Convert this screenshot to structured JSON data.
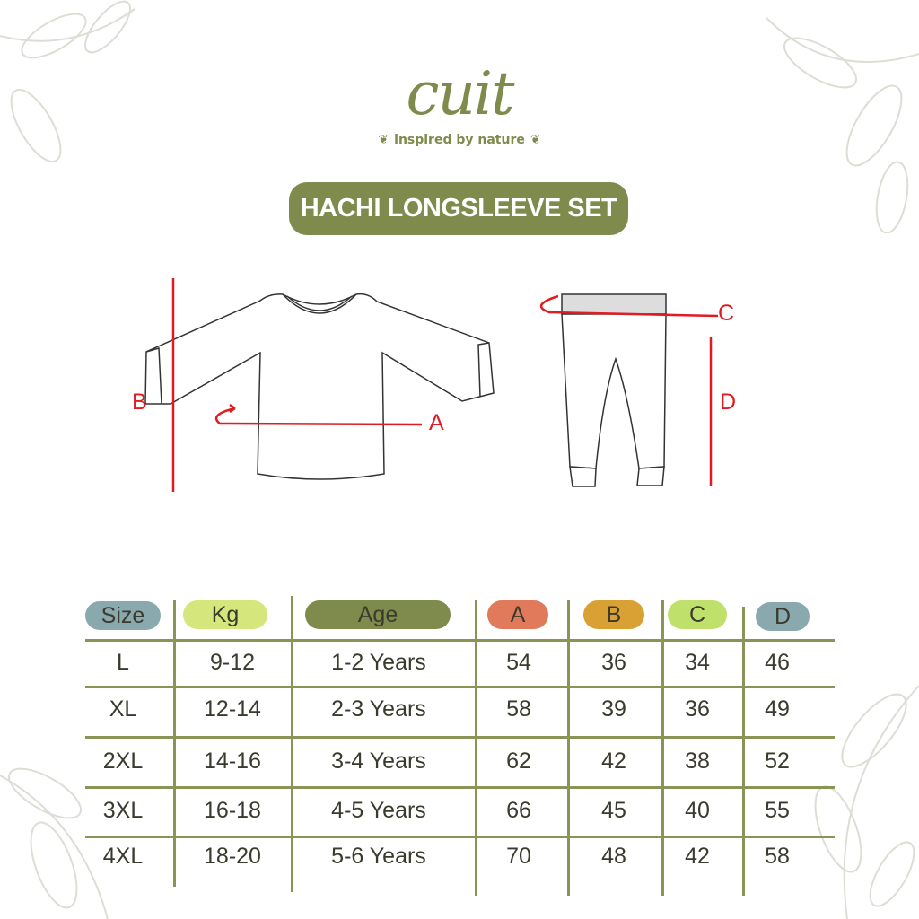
{
  "brand": {
    "name": "cuit",
    "tagline": "inspired by nature"
  },
  "title": "HACHI LONGSLEEVE SET",
  "measurement_labels": {
    "a": "A",
    "b": "B",
    "c": "C",
    "d": "D"
  },
  "colors": {
    "brand_green": "#7e8b4c",
    "measure_red": "#e01b22",
    "size": "#8aa9ae",
    "kg": "#d4e67c",
    "age": "#7e8b4c",
    "a": "#e07a5a",
    "b": "#d9a033",
    "c": "#bfe06a",
    "d": "#8aa9ae"
  },
  "table": {
    "headers": [
      "Size",
      "Kg",
      "Age",
      "A",
      "B",
      "C",
      "D"
    ],
    "rows": [
      [
        "L",
        "9-12",
        "1-2 Years",
        "54",
        "36",
        "34",
        "46"
      ],
      [
        "XL",
        "12-14",
        "2-3 Years",
        "58",
        "39",
        "36",
        "49"
      ],
      [
        "2XL",
        "14-16",
        "3-4 Years",
        "62",
        "42",
        "38",
        "52"
      ],
      [
        "3XL",
        "16-18",
        "4-5 Years",
        "66",
        "45",
        "40",
        "55"
      ],
      [
        "4XL",
        "18-20",
        "5-6 Years",
        "70",
        "48",
        "42",
        "58"
      ]
    ]
  }
}
